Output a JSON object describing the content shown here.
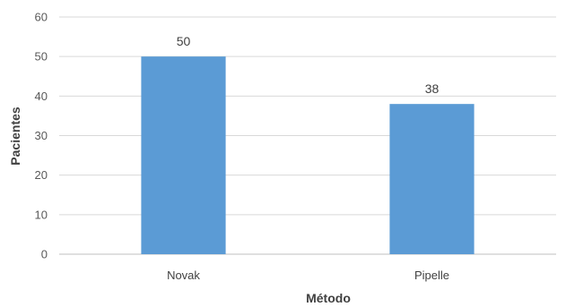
{
  "chart_data": {
    "type": "bar",
    "categories": [
      "Novak",
      "Pipelle"
    ],
    "values": [
      50,
      38
    ],
    "xlabel": "Método",
    "ylabel": "Pacientes",
    "ylim": [
      0,
      60
    ],
    "yticks": [
      0,
      10,
      20,
      30,
      40,
      50,
      60
    ],
    "grid": true,
    "legend": "none",
    "colors": {
      "bar": "#5B9BD5",
      "grid": "#D9D9D9",
      "axis": "#BFBFBF"
    }
  }
}
